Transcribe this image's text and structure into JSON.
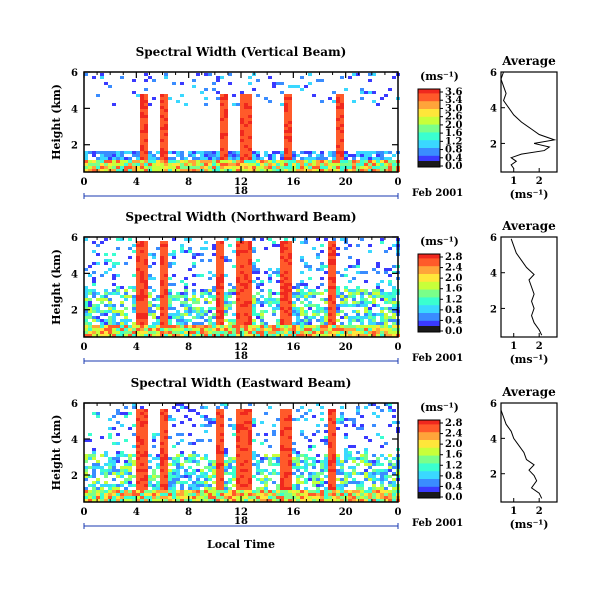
{
  "chart_data": [
    {
      "type": "heatmap",
      "title": "Spectral Width (Vertical Beam)",
      "ylabel": "Height (km)",
      "x_ticks": [
        "0",
        "4",
        "8",
        "12",
        "16",
        "20",
        "0"
      ],
      "y_ticks": [
        "6",
        "4",
        "2"
      ],
      "xlim": [
        0,
        24
      ],
      "ylim": [
        0.5,
        6
      ],
      "date_center": "18",
      "date_right": "Feb 2001",
      "colorbar": {
        "unit": "(ms⁻¹)",
        "ticks": [
          "3.6",
          "3.4",
          "3.0",
          "2.6",
          "2.0",
          "1.6",
          "1.2",
          "0.8",
          "0.4",
          "0.0"
        ]
      },
      "average": {
        "title": "Average",
        "xlabel": "(ms⁻¹)",
        "x_ticks": [
          "1",
          "2"
        ],
        "y_ticks": [
          "6",
          "4",
          "2"
        ],
        "profile": [
          [
            6.0,
            0.6
          ],
          [
            5.6,
            0.5
          ],
          [
            5.2,
            0.6
          ],
          [
            4.8,
            0.7
          ],
          [
            4.4,
            0.6
          ],
          [
            4.0,
            0.8
          ],
          [
            3.6,
            1.0
          ],
          [
            3.2,
            1.3
          ],
          [
            2.8,
            1.7
          ],
          [
            2.5,
            2.0
          ],
          [
            2.2,
            2.6
          ],
          [
            2.0,
            1.8
          ],
          [
            1.8,
            2.4
          ],
          [
            1.6,
            2.2
          ],
          [
            1.4,
            1.3
          ],
          [
            1.2,
            0.9
          ],
          [
            1.0,
            1.1
          ],
          [
            0.8,
            0.9
          ],
          [
            0.6,
            1.0
          ]
        ]
      }
    },
    {
      "type": "heatmap",
      "title": "Spectral Width (Northward Beam)",
      "ylabel": "Height (km)",
      "x_ticks": [
        "0",
        "4",
        "8",
        "12",
        "16",
        "20",
        "0"
      ],
      "y_ticks": [
        "6",
        "4",
        "2"
      ],
      "xlim": [
        0,
        24
      ],
      "ylim": [
        0.5,
        6
      ],
      "date_center": "18",
      "date_right": "Feb 2001",
      "colorbar": {
        "unit": "(ms⁻¹)",
        "ticks": [
          "2.8",
          "2.4",
          "2.0",
          "1.6",
          "1.2",
          "0.8",
          "0.4",
          "0.0"
        ]
      },
      "average": {
        "title": "Average",
        "xlabel": "(ms⁻¹)",
        "x_ticks": [
          "1",
          "2"
        ],
        "y_ticks": [
          "6",
          "4",
          "2"
        ],
        "profile": [
          [
            5.9,
            0.9
          ],
          [
            5.5,
            1.0
          ],
          [
            5.1,
            1.1
          ],
          [
            4.7,
            1.3
          ],
          [
            4.3,
            1.5
          ],
          [
            3.9,
            1.8
          ],
          [
            3.6,
            1.6
          ],
          [
            3.2,
            1.7
          ],
          [
            2.8,
            1.8
          ],
          [
            2.4,
            1.7
          ],
          [
            2.0,
            1.8
          ],
          [
            1.6,
            1.7
          ],
          [
            1.2,
            1.8
          ],
          [
            0.8,
            2.0
          ],
          [
            0.5,
            2.1
          ]
        ]
      }
    },
    {
      "type": "heatmap",
      "title": "Spectral Width (Eastward Beam)",
      "ylabel": "Height (km)",
      "x_ticks": [
        "0",
        "4",
        "8",
        "12",
        "16",
        "20",
        "0"
      ],
      "y_ticks": [
        "6",
        "4",
        "2"
      ],
      "xlim": [
        0,
        24
      ],
      "ylim": [
        0.5,
        6
      ],
      "date_center": "18",
      "date_right": "Feb 2001",
      "xlabel": "Local Time",
      "colorbar": {
        "unit": "(ms⁻¹)",
        "ticks": [
          "2.8",
          "2.4",
          "2.0",
          "1.6",
          "1.2",
          "0.8",
          "0.4",
          "0.0"
        ]
      },
      "average": {
        "title": "Average",
        "xlabel": "(ms⁻¹)",
        "x_ticks": [
          "1",
          "2"
        ],
        "y_ticks": [
          "6",
          "4",
          "2"
        ],
        "profile": [
          [
            5.6,
            0.5
          ],
          [
            5.2,
            0.6
          ],
          [
            4.8,
            0.7
          ],
          [
            4.4,
            0.9
          ],
          [
            4.0,
            1.0
          ],
          [
            3.6,
            1.2
          ],
          [
            3.2,
            1.4
          ],
          [
            2.8,
            1.5
          ],
          [
            2.5,
            1.8
          ],
          [
            2.2,
            1.6
          ],
          [
            1.9,
            1.8
          ],
          [
            1.6,
            1.9
          ],
          [
            1.2,
            1.7
          ],
          [
            0.9,
            2.0
          ],
          [
            0.6,
            2.1
          ]
        ]
      }
    }
  ]
}
